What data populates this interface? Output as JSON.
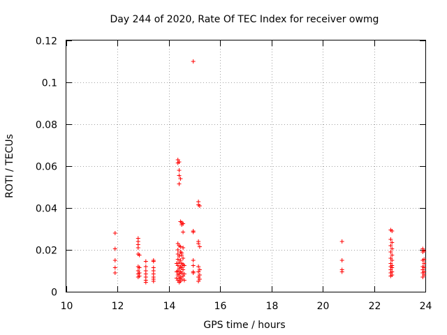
{
  "chart_data": {
    "type": "scatter",
    "title": "Day 244 of 2020, Rate Of TEC Index for receiver owmg",
    "xlabel": "GPS time / hours",
    "ylabel": "ROTI / TECUs",
    "xlim": [
      10,
      24
    ],
    "ylim": [
      0,
      0.12
    ],
    "xticks": [
      "10",
      "12",
      "14",
      "16",
      "18",
      "20",
      "22",
      "24"
    ],
    "yticks": [
      "0",
      "0.02",
      "0.04",
      "0.06",
      "0.08",
      "0.1",
      "0.12"
    ],
    "grid": true,
    "marker": "plus",
    "color": "#ff0000",
    "points": [
      [
        11.9,
        0.028
      ],
      [
        11.9,
        0.0205
      ],
      [
        11.9,
        0.015
      ],
      [
        11.9,
        0.0115
      ],
      [
        11.9,
        0.009
      ],
      [
        12.8,
        0.0255
      ],
      [
        12.8,
        0.024
      ],
      [
        12.8,
        0.0225
      ],
      [
        12.8,
        0.021
      ],
      [
        12.8,
        0.018
      ],
      [
        12.8,
        0.012
      ],
      [
        12.8,
        0.01
      ],
      [
        12.8,
        0.0085
      ],
      [
        12.8,
        0.007
      ],
      [
        12.85,
        0.0175
      ],
      [
        12.85,
        0.0115
      ],
      [
        12.85,
        0.009
      ],
      [
        12.85,
        0.0075
      ],
      [
        13.1,
        0.0145
      ],
      [
        13.1,
        0.012
      ],
      [
        13.1,
        0.01
      ],
      [
        13.1,
        0.0085
      ],
      [
        13.1,
        0.007
      ],
      [
        13.1,
        0.0055
      ],
      [
        13.1,
        0.0045
      ],
      [
        13.4,
        0.015
      ],
      [
        13.4,
        0.0145
      ],
      [
        13.4,
        0.0115
      ],
      [
        13.4,
        0.01
      ],
      [
        13.4,
        0.0085
      ],
      [
        13.4,
        0.007
      ],
      [
        13.4,
        0.006
      ],
      [
        13.4,
        0.005
      ],
      [
        14.35,
        0.063
      ],
      [
        14.35,
        0.0615
      ],
      [
        14.4,
        0.062
      ],
      [
        14.4,
        0.058
      ],
      [
        14.4,
        0.0555
      ],
      [
        14.45,
        0.054
      ],
      [
        14.4,
        0.0515
      ],
      [
        14.45,
        0.0335
      ],
      [
        14.5,
        0.033
      ],
      [
        14.55,
        0.0325
      ],
      [
        14.5,
        0.032
      ],
      [
        14.55,
        0.0285
      ],
      [
        14.35,
        0.023
      ],
      [
        14.4,
        0.022
      ],
      [
        14.45,
        0.0215
      ],
      [
        14.55,
        0.021
      ],
      [
        14.35,
        0.02
      ],
      [
        14.45,
        0.019
      ],
      [
        14.5,
        0.0185
      ],
      [
        14.35,
        0.018
      ],
      [
        14.5,
        0.0175
      ],
      [
        14.4,
        0.017
      ],
      [
        14.55,
        0.016
      ],
      [
        14.35,
        0.0155
      ],
      [
        14.45,
        0.015
      ],
      [
        14.4,
        0.014
      ],
      [
        14.5,
        0.0135
      ],
      [
        14.55,
        0.013
      ],
      [
        14.35,
        0.0125
      ],
      [
        14.45,
        0.012
      ],
      [
        14.5,
        0.0115
      ],
      [
        14.4,
        0.011
      ],
      [
        14.55,
        0.0105
      ],
      [
        14.35,
        0.01
      ],
      [
        14.45,
        0.0095
      ],
      [
        14.5,
        0.009
      ],
      [
        14.4,
        0.0085
      ],
      [
        14.35,
        0.008
      ],
      [
        14.55,
        0.0075
      ],
      [
        14.45,
        0.007
      ],
      [
        14.4,
        0.0065
      ],
      [
        14.5,
        0.006
      ],
      [
        14.35,
        0.0055
      ],
      [
        14.45,
        0.005
      ],
      [
        14.4,
        0.0045
      ],
      [
        14.3,
        0.0135
      ],
      [
        14.6,
        0.0125
      ],
      [
        14.3,
        0.0095
      ],
      [
        14.6,
        0.0085
      ],
      [
        14.3,
        0.0065
      ],
      [
        14.6,
        0.0055
      ],
      [
        14.95,
        0.11
      ],
      [
        14.95,
        0.029
      ],
      [
        14.95,
        0.0285
      ],
      [
        14.95,
        0.015
      ],
      [
        14.95,
        0.0125
      ],
      [
        14.95,
        0.0095
      ],
      [
        14.95,
        0.009
      ],
      [
        15.15,
        0.043
      ],
      [
        15.15,
        0.0415
      ],
      [
        15.2,
        0.041
      ],
      [
        15.15,
        0.024
      ],
      [
        15.15,
        0.023
      ],
      [
        15.2,
        0.0215
      ],
      [
        15.15,
        0.012
      ],
      [
        15.2,
        0.0105
      ],
      [
        15.15,
        0.0095
      ],
      [
        15.2,
        0.008
      ],
      [
        15.15,
        0.007
      ],
      [
        15.2,
        0.006
      ],
      [
        15.15,
        0.005
      ],
      [
        20.75,
        0.024
      ],
      [
        20.75,
        0.015
      ],
      [
        20.75,
        0.0105
      ],
      [
        20.75,
        0.0095
      ],
      [
        22.65,
        0.0295
      ],
      [
        22.7,
        0.029
      ],
      [
        22.65,
        0.025
      ],
      [
        22.7,
        0.0235
      ],
      [
        22.65,
        0.022
      ],
      [
        22.7,
        0.0205
      ],
      [
        22.65,
        0.019
      ],
      [
        22.7,
        0.0175
      ],
      [
        22.65,
        0.016
      ],
      [
        22.7,
        0.015
      ],
      [
        22.65,
        0.0135
      ],
      [
        22.7,
        0.0125
      ],
      [
        22.65,
        0.012
      ],
      [
        22.7,
        0.0115
      ],
      [
        22.65,
        0.0105
      ],
      [
        22.7,
        0.0095
      ],
      [
        22.65,
        0.009
      ],
      [
        22.7,
        0.008
      ],
      [
        22.65,
        0.0075
      ],
      [
        23.9,
        0.0205
      ],
      [
        23.95,
        0.0195
      ],
      [
        23.9,
        0.019
      ],
      [
        23.95,
        0.0155
      ],
      [
        23.9,
        0.015
      ],
      [
        23.95,
        0.0135
      ],
      [
        23.9,
        0.012
      ],
      [
        23.95,
        0.0115
      ],
      [
        23.9,
        0.0105
      ],
      [
        23.95,
        0.0095
      ],
      [
        23.9,
        0.009
      ],
      [
        23.95,
        0.008
      ],
      [
        23.9,
        0.007
      ]
    ]
  }
}
